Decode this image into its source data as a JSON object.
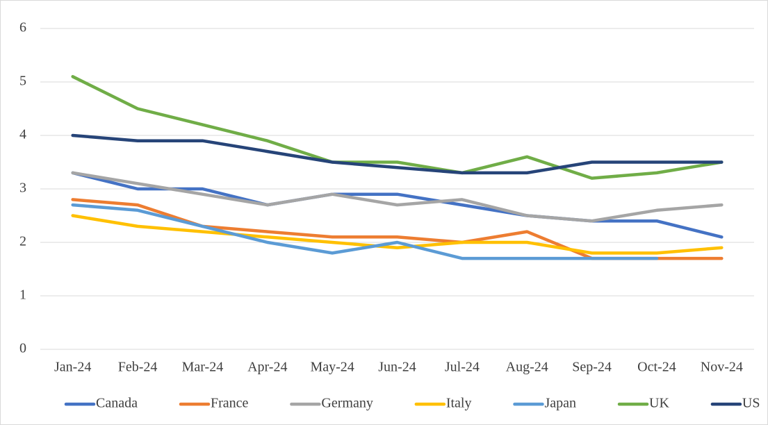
{
  "chart_data": {
    "type": "line",
    "categories": [
      "Jan-24",
      "Feb-24",
      "Mar-24",
      "Apr-24",
      "May-24",
      "Jun-24",
      "Jul-24",
      "Aug-24",
      "Sep-24",
      "Oct-24",
      "Nov-24"
    ],
    "series": [
      {
        "name": "Canada",
        "color": "#4472c4",
        "values": [
          3.3,
          3.0,
          3.0,
          2.7,
          2.9,
          2.9,
          2.7,
          2.5,
          2.4,
          2.4,
          2.1
        ]
      },
      {
        "name": "France",
        "color": "#ed7d31",
        "values": [
          2.8,
          2.7,
          2.3,
          2.2,
          2.1,
          2.1,
          2.0,
          2.2,
          1.7,
          1.7,
          1.7
        ]
      },
      {
        "name": "Germany",
        "color": "#a5a5a5",
        "values": [
          3.3,
          3.1,
          2.9,
          2.7,
          2.9,
          2.7,
          2.8,
          2.5,
          2.4,
          2.6,
          2.7
        ]
      },
      {
        "name": "Italy",
        "color": "#ffc000",
        "values": [
          2.5,
          2.3,
          2.2,
          2.1,
          2.0,
          1.9,
          2.0,
          2.0,
          1.8,
          1.8,
          1.9
        ]
      },
      {
        "name": "Japan",
        "color": "#5b9bd5",
        "values": [
          2.7,
          2.6,
          2.3,
          2.0,
          1.8,
          2.0,
          1.7,
          1.7,
          1.7,
          1.7,
          null
        ]
      },
      {
        "name": "UK",
        "color": "#70ad47",
        "values": [
          5.1,
          4.5,
          4.2,
          3.9,
          3.5,
          3.5,
          3.3,
          3.6,
          3.2,
          3.3,
          3.5
        ]
      },
      {
        "name": "US",
        "color": "#264478",
        "values": [
          4.0,
          3.9,
          3.9,
          3.7,
          3.5,
          3.4,
          3.3,
          3.3,
          3.5,
          3.5,
          3.5
        ]
      }
    ],
    "ylim": [
      0,
      6
    ],
    "yticks": [
      0,
      1,
      2,
      3,
      4,
      5,
      6
    ],
    "grid": true,
    "legend": "bottom"
  }
}
